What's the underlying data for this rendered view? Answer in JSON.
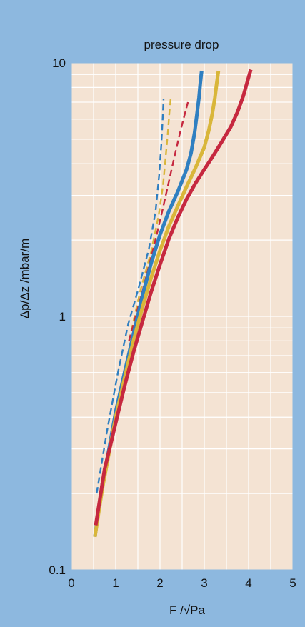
{
  "colors": {
    "background": "#8db8df",
    "plot_background": "#f4e3d3",
    "grid": "#ffffff",
    "blue": "#2f7fc1",
    "yellow": "#d9b63a",
    "red": "#c6283f"
  },
  "chart_data": {
    "type": "line",
    "title": "pressure drop",
    "xlabel": "F /√Pa",
    "ylabel": "Δp/Δz /mbar/m",
    "xlim": [
      0,
      5
    ],
    "ylim": [
      0.1,
      10
    ],
    "yscale": "log",
    "grid": true,
    "x_ticks": [
      0,
      1,
      2,
      3,
      4,
      5
    ],
    "x_tick_labels": [
      "0",
      "1",
      "2",
      "3",
      "4",
      "5"
    ],
    "y_ticks": [
      0.1,
      1,
      10
    ],
    "y_tick_labels": [
      "0.1",
      "1",
      "10"
    ],
    "series": [
      {
        "color": "blue",
        "style": "dashed",
        "width": "thin",
        "x": [
          0.57,
          0.8,
          1.05,
          1.28,
          1.52,
          1.75,
          1.9,
          1.98,
          2.03,
          2.06,
          2.08
        ],
        "y": [
          0.2,
          0.35,
          0.6,
          0.93,
          1.3,
          1.85,
          2.6,
          3.6,
          4.8,
          6.0,
          7.2
        ]
      },
      {
        "color": "yellow",
        "style": "dashed",
        "width": "thin",
        "x": [
          1.3,
          1.55,
          1.8,
          1.97,
          2.07,
          2.13,
          2.18,
          2.21,
          2.24
        ],
        "y": [
          0.8,
          1.25,
          1.8,
          2.5,
          3.3,
          4.3,
          5.4,
          6.3,
          7.2
        ]
      },
      {
        "color": "red",
        "style": "dashed",
        "width": "thin",
        "x": [
          1.3,
          1.6,
          1.85,
          2.05,
          2.2,
          2.33,
          2.44,
          2.54,
          2.63
        ],
        "y": [
          0.8,
          1.25,
          1.85,
          2.6,
          3.4,
          4.3,
          5.2,
          6.1,
          7.0
        ]
      },
      {
        "color": "blue",
        "style": "solid",
        "width": "thick",
        "x": [
          0.53,
          0.7,
          0.85,
          1.0,
          1.2,
          1.4,
          1.6,
          1.8,
          2.0,
          2.2,
          2.4,
          2.6,
          2.7,
          2.78,
          2.83,
          2.88,
          2.91,
          2.94
        ],
        "y": [
          0.135,
          0.22,
          0.3,
          0.42,
          0.6,
          0.85,
          1.2,
          1.62,
          2.1,
          2.6,
          3.1,
          3.8,
          4.4,
          5.3,
          6.2,
          7.3,
          8.3,
          9.3
        ]
      },
      {
        "color": "yellow",
        "style": "solid",
        "width": "thick",
        "x": [
          0.53,
          0.7,
          0.85,
          1.0,
          1.2,
          1.4,
          1.6,
          1.8,
          2.0,
          2.2,
          2.4,
          2.6,
          2.8,
          3.0,
          3.1,
          3.18,
          3.24,
          3.28,
          3.32
        ],
        "y": [
          0.135,
          0.21,
          0.29,
          0.4,
          0.57,
          0.8,
          1.08,
          1.42,
          1.82,
          2.27,
          2.72,
          3.25,
          3.85,
          4.65,
          5.4,
          6.3,
          7.3,
          8.3,
          9.3
        ]
      },
      {
        "color": "red",
        "style": "solid",
        "width": "thick",
        "x": [
          0.55,
          0.75,
          0.9,
          1.0,
          1.2,
          1.4,
          1.6,
          1.8,
          2.0,
          2.2,
          2.4,
          2.6,
          2.8,
          3.0,
          3.2,
          3.4,
          3.6,
          3.75,
          3.88,
          3.97,
          4.05
        ],
        "y": [
          0.15,
          0.25,
          0.32,
          0.38,
          0.53,
          0.72,
          0.95,
          1.25,
          1.6,
          2.02,
          2.45,
          2.9,
          3.35,
          3.8,
          4.3,
          4.9,
          5.6,
          6.4,
          7.4,
          8.4,
          9.4
        ]
      }
    ]
  }
}
